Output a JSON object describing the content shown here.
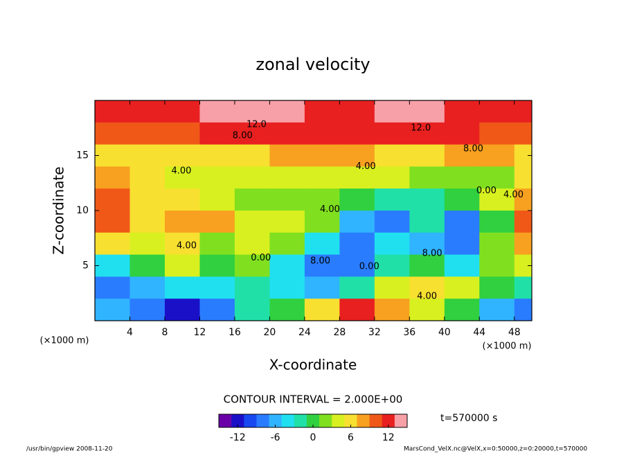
{
  "chart_data": {
    "type": "heatmap",
    "title": "zonal velocity",
    "x_label": "X-coordinate",
    "y_label": "Z-coordinate",
    "x_unit": "(×1000 m)",
    "y_unit": "(×1000 m)",
    "x": [
      2,
      6,
      10,
      14,
      18,
      22,
      26,
      30,
      34,
      38,
      42,
      46,
      50
    ],
    "y": [
      19,
      17,
      15,
      13,
      11,
      9,
      7,
      5,
      3,
      1
    ],
    "cell_width": 4,
    "cell_height": 2,
    "z": [
      [
        11,
        12,
        12,
        13,
        14,
        15,
        12,
        12,
        15,
        14,
        12,
        12,
        11
      ],
      [
        9,
        10,
        10,
        11,
        12,
        12,
        11,
        11,
        12,
        12,
        11,
        10,
        9
      ],
      [
        6,
        6,
        5,
        6,
        6,
        7,
        7,
        7,
        6,
        6,
        7,
        7,
        6
      ],
      [
        8,
        5,
        4,
        4,
        3,
        3,
        3,
        3,
        3,
        2,
        2,
        2,
        5
      ],
      [
        9,
        6,
        5,
        3,
        2,
        2,
        1,
        0,
        -2,
        -3,
        -1,
        3,
        8
      ],
      [
        9,
        6,
        7,
        8,
        4,
        4,
        2,
        -6,
        -8,
        -3,
        -8,
        0,
        10
      ],
      [
        5,
        4,
        6,
        2,
        3,
        2,
        -4,
        -9,
        -4,
        -6,
        -8,
        2,
        7
      ],
      [
        -4,
        0,
        3,
        0,
        2,
        -4,
        -8,
        -8,
        -2,
        0,
        -4,
        2,
        4
      ],
      [
        -8,
        -6,
        -4,
        -5,
        -2,
        -5,
        -6,
        -2,
        3,
        5,
        3,
        0,
        -3
      ],
      [
        -6,
        -8,
        -12,
        -8,
        -2,
        0,
        6,
        12,
        8,
        3,
        0,
        -6,
        -8
      ]
    ],
    "xlim": [
      0,
      50
    ],
    "ylim": [
      0,
      20
    ],
    "xticks": [
      4,
      8,
      12,
      16,
      20,
      24,
      28,
      32,
      36,
      40,
      44,
      48
    ],
    "yticks": [
      5,
      10,
      15
    ],
    "annotations": [
      {
        "text": "12.0",
        "x": 18.5,
        "y": 17.8
      },
      {
        "text": "8.00",
        "x": 16.9,
        "y": 16.8
      },
      {
        "text": "12.0",
        "x": 37.3,
        "y": 17.5
      },
      {
        "text": "8.00",
        "x": 43.3,
        "y": 15.6
      },
      {
        "text": "4.00",
        "x": 31,
        "y": 14
      },
      {
        "text": "4.00",
        "x": 9.9,
        "y": 13.6
      },
      {
        "text": "0.00",
        "x": 44.8,
        "y": 11.8
      },
      {
        "text": "4.00",
        "x": 47.9,
        "y": 11.4
      },
      {
        "text": "4.00",
        "x": 26.9,
        "y": 10.1
      },
      {
        "text": "4.00",
        "x": 10.5,
        "y": 6.8
      },
      {
        "text": "0.00",
        "x": 19,
        "y": 5.7
      },
      {
        "text": "8.00",
        "x": 25.8,
        "y": 5.4
      },
      {
        "text": "0.00",
        "x": 31.4,
        "y": 4.9
      },
      {
        "text": "8.00",
        "x": 38.6,
        "y": 6.1
      },
      {
        "text": "4.00",
        "x": 38,
        "y": 2.2
      }
    ],
    "colorbar": {
      "title": "CONTOUR INTERVAL = 2.000E+00",
      "lim": [
        -15,
        15
      ],
      "step": 2,
      "ticks": [
        -12,
        -6,
        0,
        6,
        12
      ],
      "colors": [
        "#6a00a8",
        "#1a10c8",
        "#1848f0",
        "#2a7cff",
        "#30b4ff",
        "#20e0f0",
        "#20e0a8",
        "#30d040",
        "#80e020",
        "#d8f020",
        "#f8e030",
        "#f8a020",
        "#f05818",
        "#e82020",
        "#f8a0a8"
      ]
    },
    "time_label": "t=570000 s",
    "footer_left": "/usr/bin/gpview  2008-11-20",
    "footer_right": "MarsCond_VelX.nc@VelX,x=0:50000,z=0:20000,t=570000"
  }
}
